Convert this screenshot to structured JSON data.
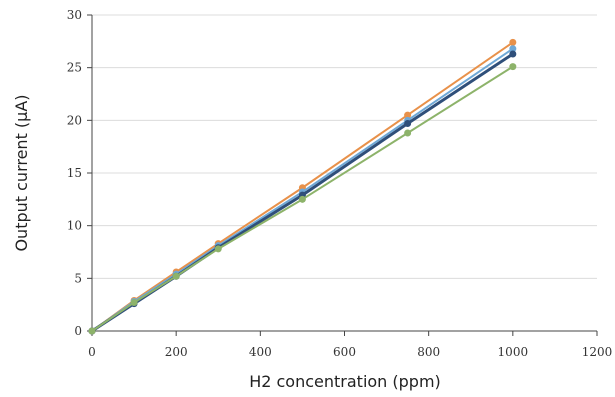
{
  "chart_data": {
    "type": "line",
    "xlabel": "H2 concentration (ppm)",
    "ylabel": "Output current (μA)",
    "xlim": [
      0,
      1200
    ],
    "ylim": [
      0,
      30
    ],
    "xticks": [
      0,
      200,
      400,
      600,
      800,
      1000,
      1200
    ],
    "yticks": [
      0,
      5,
      10,
      15,
      20,
      25,
      30
    ],
    "grid": "horizontal",
    "legend": "none",
    "x": [
      0,
      100,
      200,
      300,
      500,
      750,
      1000
    ],
    "series": [
      {
        "color": "#E8914A",
        "values": [
          0,
          2.9,
          5.6,
          8.3,
          13.6,
          20.5,
          27.4
        ]
      },
      {
        "color": "#6FA8D6",
        "values": [
          0,
          2.8,
          5.4,
          8.1,
          13.2,
          20.0,
          26.8
        ]
      },
      {
        "color": "#2F4F7A",
        "values": [
          0,
          2.6,
          5.2,
          7.9,
          12.9,
          19.7,
          26.3
        ]
      },
      {
        "color": "#8DB36A",
        "values": [
          0,
          2.7,
          5.2,
          7.8,
          12.5,
          18.8,
          25.1
        ]
      }
    ]
  }
}
